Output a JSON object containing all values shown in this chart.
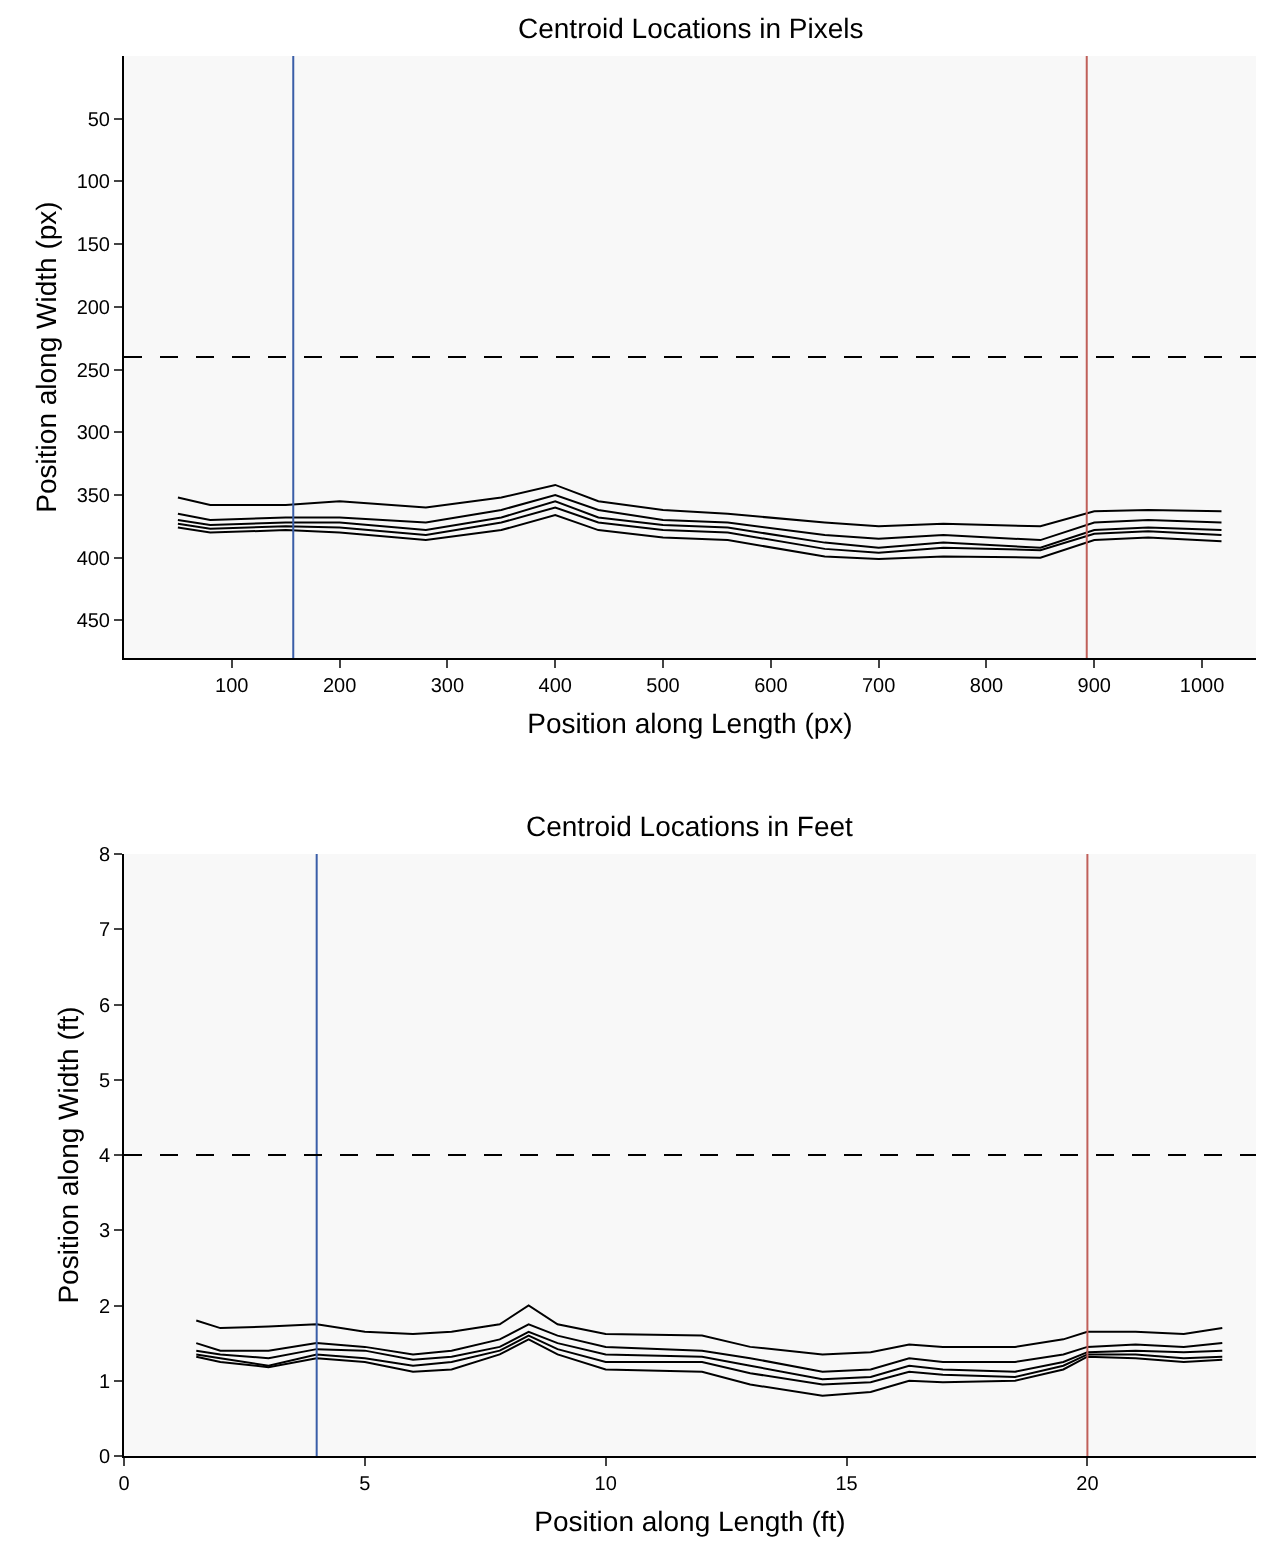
{
  "chart_data": [
    {
      "type": "line",
      "title": "Centroid Locations in Pixels",
      "xlabel": "Position along Length (px)",
      "ylabel": "Position along Width (px)",
      "xlim": [
        0,
        1050
      ],
      "ylim": [
        480,
        0
      ],
      "xticks": [
        100,
        200,
        300,
        400,
        500,
        600,
        700,
        800,
        900,
        1000
      ],
      "yticks": [
        50,
        100,
        150,
        200,
        250,
        300,
        350,
        400,
        450
      ],
      "line_style": "solid",
      "x": [
        50,
        80,
        150,
        200,
        280,
        350,
        400,
        440,
        500,
        560,
        650,
        700,
        760,
        850,
        900,
        950,
        1018
      ],
      "series": [
        {
          "color": "#000000",
          "values": [
            352,
            358,
            358,
            355,
            360,
            352,
            342,
            355,
            362,
            365,
            372,
            375,
            373,
            375,
            363,
            362,
            363
          ]
        },
        {
          "color": "#000000",
          "values": [
            365,
            370,
            368,
            368,
            372,
            362,
            350,
            362,
            370,
            372,
            382,
            385,
            382,
            386,
            372,
            370,
            372
          ]
        },
        {
          "color": "#000000",
          "values": [
            370,
            374,
            372,
            372,
            378,
            368,
            355,
            368,
            374,
            376,
            388,
            392,
            388,
            392,
            378,
            376,
            378
          ]
        },
        {
          "color": "#000000",
          "values": [
            373,
            377,
            375,
            376,
            382,
            372,
            360,
            372,
            378,
            380,
            393,
            396,
            392,
            394,
            381,
            379,
            382
          ]
        },
        {
          "color": "#000000",
          "values": [
            376,
            380,
            378,
            380,
            386,
            378,
            366,
            378,
            384,
            386,
            399,
            401,
            399,
            400,
            386,
            384,
            387
          ]
        }
      ],
      "ref_lines": [
        {
          "axis": "x",
          "value": 157,
          "color": "#3a5ea8",
          "line_style": "solid"
        },
        {
          "axis": "x",
          "value": 893,
          "color": "#c0605a",
          "line_style": "solid"
        },
        {
          "axis": "y",
          "value": 240,
          "color": "#000000",
          "line_style": "dashed"
        }
      ]
    },
    {
      "type": "line",
      "title": "Centroid Locations in Feet",
      "xlabel": "Position along Length (ft)",
      "ylabel": "Position along Width (ft)",
      "xlim": [
        0,
        23.5
      ],
      "ylim": [
        0,
        8
      ],
      "xticks": [
        0,
        5,
        10,
        15,
        20
      ],
      "yticks": [
        0,
        1,
        2,
        3,
        4,
        5,
        6,
        7,
        8
      ],
      "line_style": "solid",
      "x": [
        1.5,
        2,
        3,
        4,
        5,
        6,
        6.8,
        7.8,
        8.4,
        9,
        10,
        12,
        13,
        14.5,
        15.5,
        16.3,
        17,
        18.5,
        19.5,
        20,
        21,
        22,
        22.8
      ],
      "series": [
        {
          "color": "#000000",
          "values": [
            1.8,
            1.7,
            1.72,
            1.75,
            1.65,
            1.62,
            1.65,
            1.75,
            2.0,
            1.75,
            1.62,
            1.6,
            1.45,
            1.35,
            1.38,
            1.48,
            1.45,
            1.45,
            1.55,
            1.65,
            1.65,
            1.62,
            1.7
          ]
        },
        {
          "color": "#000000",
          "values": [
            1.5,
            1.4,
            1.4,
            1.5,
            1.45,
            1.35,
            1.4,
            1.55,
            1.75,
            1.6,
            1.45,
            1.4,
            1.3,
            1.12,
            1.15,
            1.3,
            1.25,
            1.25,
            1.35,
            1.45,
            1.48,
            1.45,
            1.5
          ]
        },
        {
          "color": "#000000",
          "values": [
            1.4,
            1.35,
            1.3,
            1.42,
            1.4,
            1.28,
            1.32,
            1.45,
            1.65,
            1.5,
            1.35,
            1.32,
            1.2,
            1.02,
            1.05,
            1.2,
            1.15,
            1.12,
            1.25,
            1.38,
            1.4,
            1.38,
            1.4
          ]
        },
        {
          "color": "#000000",
          "values": [
            1.35,
            1.3,
            1.2,
            1.35,
            1.3,
            1.2,
            1.25,
            1.4,
            1.6,
            1.42,
            1.25,
            1.25,
            1.1,
            0.95,
            0.98,
            1.12,
            1.08,
            1.05,
            1.2,
            1.35,
            1.35,
            1.3,
            1.32
          ]
        },
        {
          "color": "#000000",
          "values": [
            1.32,
            1.25,
            1.18,
            1.3,
            1.25,
            1.12,
            1.15,
            1.35,
            1.55,
            1.35,
            1.15,
            1.12,
            0.95,
            0.8,
            0.85,
            1.0,
            0.98,
            1.0,
            1.15,
            1.32,
            1.3,
            1.25,
            1.28
          ]
        }
      ],
      "ref_lines": [
        {
          "axis": "x",
          "value": 4,
          "color": "#3a5ea8",
          "line_style": "solid"
        },
        {
          "axis": "x",
          "value": 20,
          "color": "#c0605a",
          "line_style": "solid"
        },
        {
          "axis": "y",
          "value": 4,
          "color": "#000000",
          "line_style": "dashed"
        }
      ]
    }
  ]
}
